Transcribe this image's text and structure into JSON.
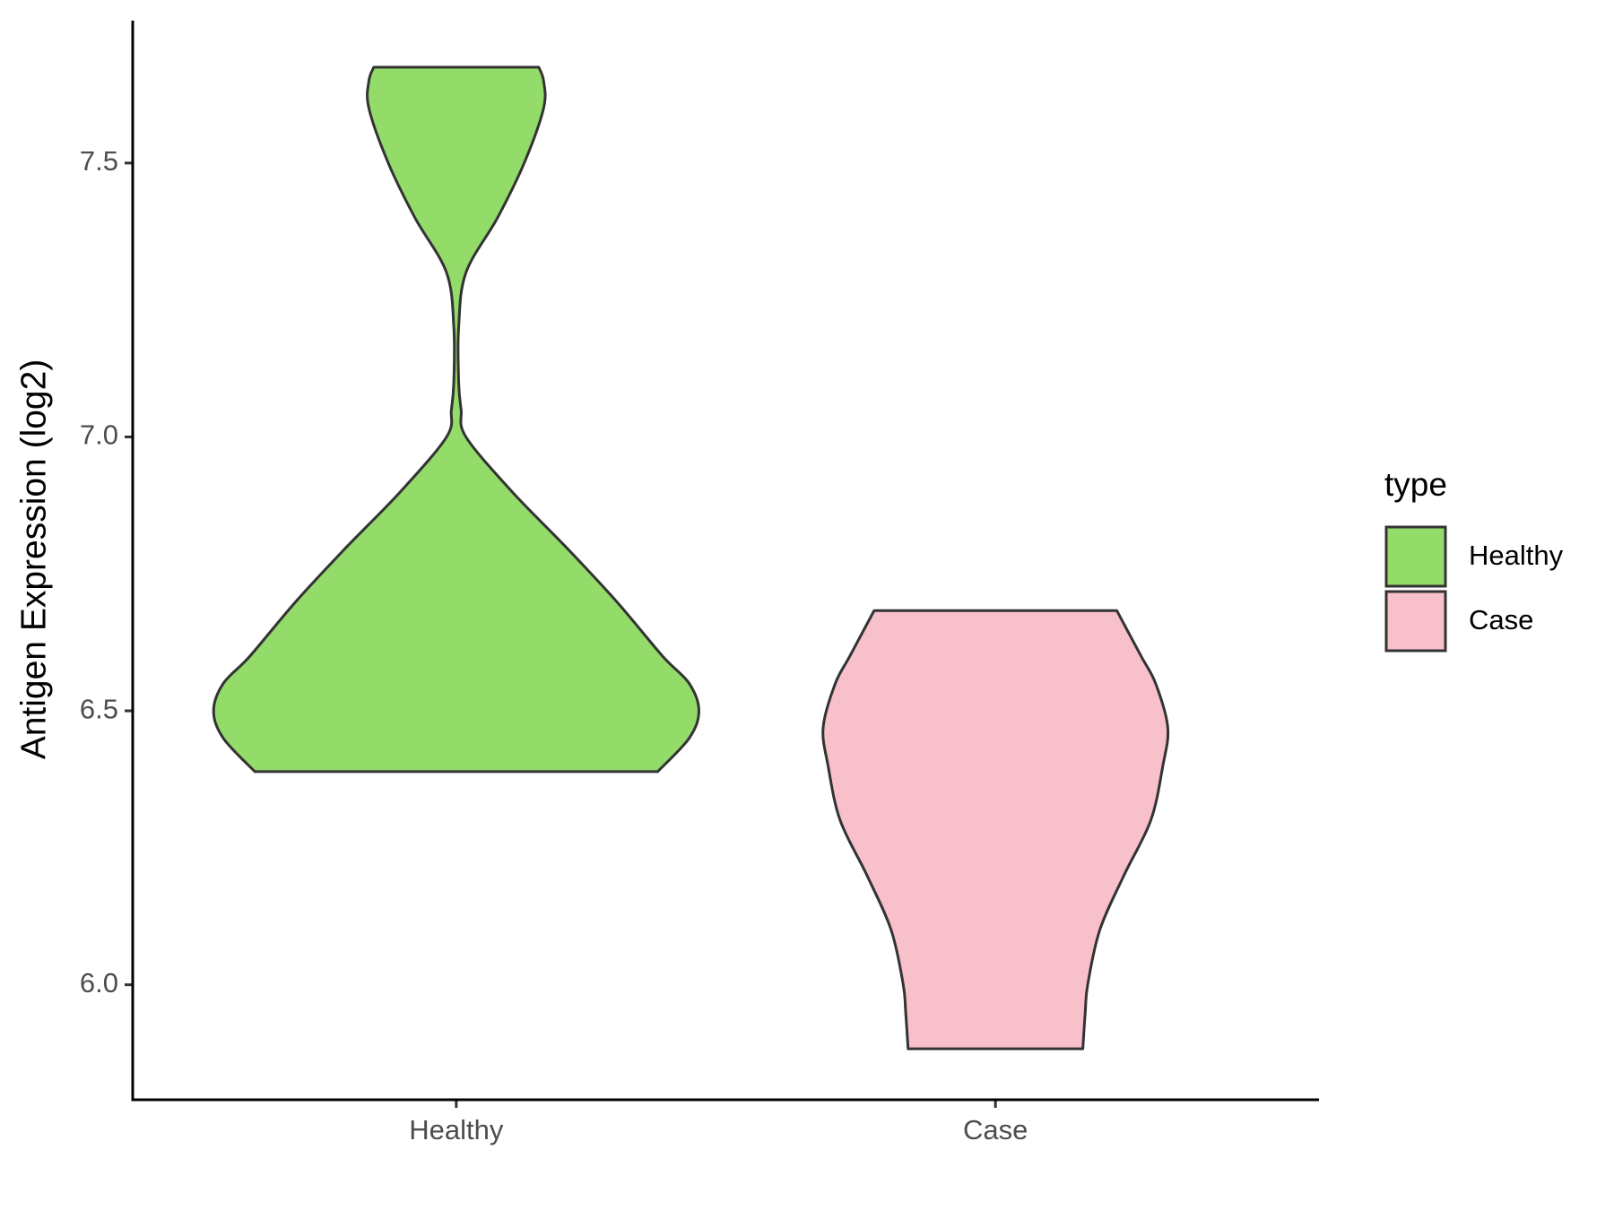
{
  "chart_data": {
    "type": "violin",
    "y_label": "Antigen Expression (log2)",
    "categories": [
      "Healthy",
      "Case"
    ],
    "legend_title": "type",
    "ylim": [
      5.79,
      7.76
    ],
    "yticks": [
      {
        "value": 6,
        "label": "6.0"
      },
      {
        "value": 6.5,
        "label": "6.5"
      },
      {
        "value": 7,
        "label": "7.0"
      },
      {
        "value": 7.5,
        "label": "7.5"
      }
    ],
    "series": [
      {
        "name": "Healthy",
        "color": "#93dc6a",
        "y": [
          6.389,
          6.45,
          6.5,
          6.55,
          6.6,
          6.7,
          6.8,
          6.9,
          7.0,
          7.05,
          7.1,
          7.2,
          7.3,
          7.4,
          7.5,
          7.6,
          7.65,
          7.675
        ],
        "density": [
          0.83,
          0.96,
          1,
          0.96,
          0.85,
          0.66,
          0.45,
          0.23,
          0.04,
          0.02,
          0.01,
          0.01,
          0.04,
          0.17,
          0.28,
          0.36,
          0.36,
          0.34
        ]
      },
      {
        "name": "Case",
        "color": "#f7c0cb",
        "y": [
          5.883,
          5.95,
          6.0,
          6.1,
          6.2,
          6.3,
          6.4,
          6.47,
          6.55,
          6.6,
          6.683
        ],
        "density": [
          0.36,
          0.37,
          0.38,
          0.43,
          0.53,
          0.64,
          0.69,
          0.71,
          0.66,
          0.6,
          0.5
        ]
      }
    ]
  }
}
